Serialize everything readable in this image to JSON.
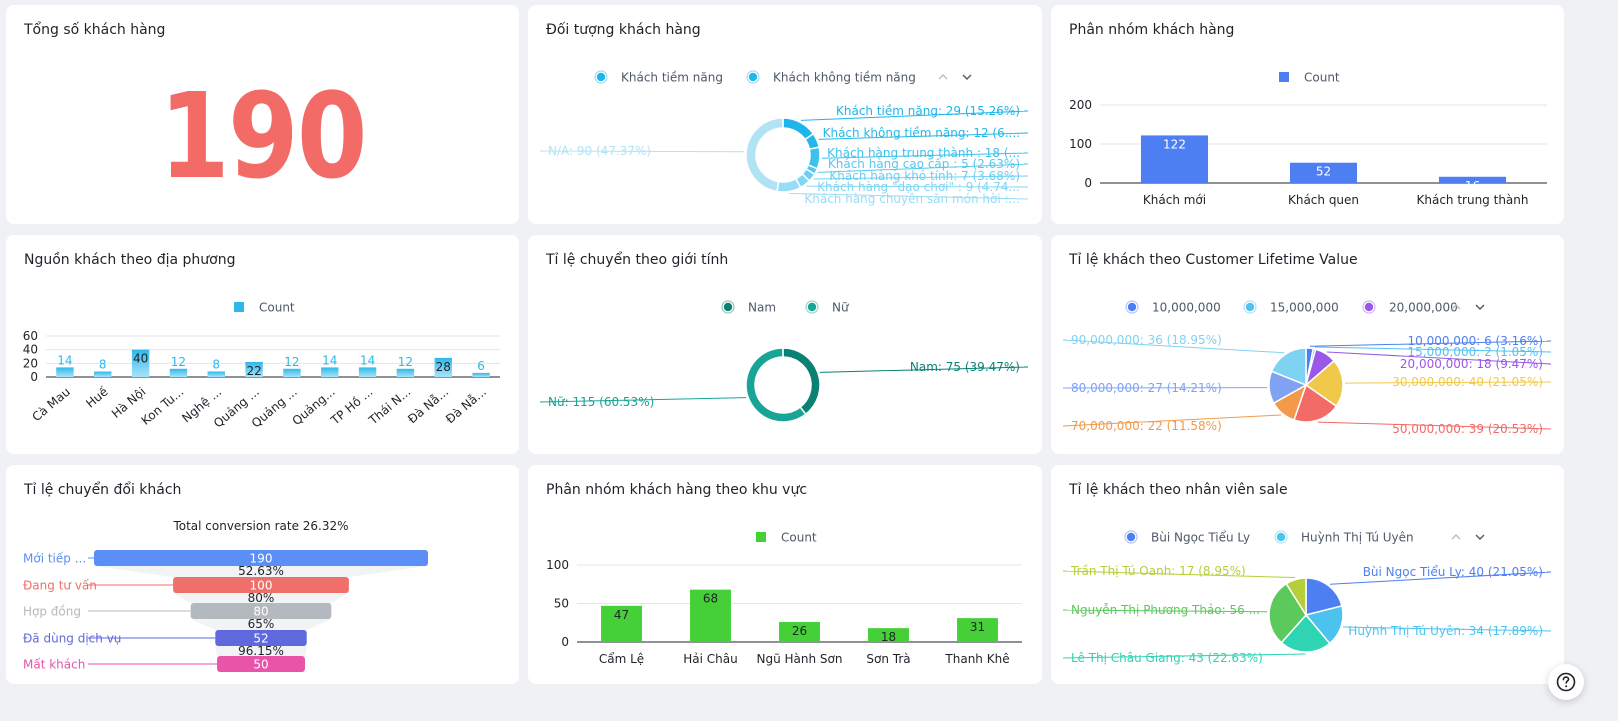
{
  "chart_data": [
    {
      "id": "total",
      "type": "table",
      "title": "Tổng số khách hàng",
      "value": "190"
    },
    {
      "id": "audience",
      "type": "pie",
      "title": "Đối tượng khách hàng",
      "legend": [
        "Khách tiềm năng",
        "Khách không tiềm năng"
      ],
      "legend_position": "top",
      "slices": [
        {
          "label": "Khách tiềm năng: 29 (15.26%)",
          "value": 29,
          "color": "#1db5ea"
        },
        {
          "label": "Khách không tiềm năng: 12 (6....",
          "value": 12,
          "color": "#24b8ea"
        },
        {
          "label": "Khách hàng trung thành : 18 (...",
          "value": 18,
          "color": "#3dc1ed"
        },
        {
          "label": "Khách hàng cao cấp : 5 (2.63%)",
          "value": 5,
          "color": "#55c8ef"
        },
        {
          "label": "Khách hàng khó tính: 7 (3.68%)",
          "value": 7,
          "color": "#6ccff1"
        },
        {
          "label": "Khách hàng \"dạo chơi\" : 9 (4.74...",
          "value": 9,
          "color": "#82d6f3"
        },
        {
          "label": "Khách hàng chuyên săn món hời :...",
          "value": 20,
          "color": "#98dcf5"
        },
        {
          "label": "N/A: 90 (47.37%)",
          "value": 90,
          "color": "#b2e3f5"
        }
      ]
    },
    {
      "id": "segments",
      "type": "bar",
      "title": "Phân nhóm khách hàng",
      "legend": [
        "Count"
      ],
      "legend_position": "top",
      "color": "#4e7ff2",
      "categories": [
        "Khách mới",
        "Khách quen",
        "Khách trung thành"
      ],
      "values": [
        122,
        52,
        16
      ],
      "yticks": [
        0,
        100,
        200
      ],
      "ylim": [
        0,
        200
      ]
    },
    {
      "id": "region_source",
      "type": "bar",
      "title": "Nguồn khách theo địa phương",
      "legend": [
        "Count"
      ],
      "legend_position": "top",
      "color": "#2cb9ea",
      "categories": [
        "Cà Mau",
        "Huế",
        "Hà Nội",
        "Kon Tu...",
        "Nghệ ...",
        "Quảng ...",
        "Quảng ...",
        "Quảng...",
        "TP Hồ ...",
        "Thái N...",
        "Đà Nẵ...",
        "Đà Nẵ..."
      ],
      "values": [
        14,
        8,
        40,
        12,
        8,
        22,
        12,
        14,
        14,
        12,
        28,
        6
      ],
      "yticks": [
        0,
        20,
        40,
        60
      ],
      "ylim": [
        0,
        60
      ]
    },
    {
      "id": "gender",
      "type": "pie",
      "title": "Tỉ lệ chuyển theo giới tính",
      "legend": [
        "Nam",
        "Nữ"
      ],
      "legend_position": "top",
      "slices": [
        {
          "label": "Nam: 75 (39.47%)",
          "value": 75,
          "color": "#0b8174"
        },
        {
          "label": "Nữ: 115 (60.53%)",
          "value": 115,
          "color": "#19a595"
        }
      ]
    },
    {
      "id": "clv",
      "type": "pie",
      "title": "Tỉ lệ khách theo Customer Lifetime Value",
      "legend": [
        "10,000,000",
        "15,000,000",
        "20,000,000"
      ],
      "legend_position": "top",
      "slices": [
        {
          "label": "10,000,000: 6 (3.16%)",
          "value": 6,
          "color": "#4e7ff2"
        },
        {
          "label": "15,000,000: 2 (1.05%)",
          "value": 2,
          "color": "#53c1f0"
        },
        {
          "label": "20,000,000: 18 (9.47%)",
          "value": 18,
          "color": "#9b58e8"
        },
        {
          "label": "30,000,000: 40 (21.05%)",
          "value": 40,
          "color": "#f0c94a"
        },
        {
          "label": "50,000,000: 39 (20.53%)",
          "value": 39,
          "color": "#f26b66"
        },
        {
          "label": "70,000,000: 22 (11.58%)",
          "value": 22,
          "color": "#f29a4a"
        },
        {
          "label": "80,000,000: 27 (14.21%)",
          "value": 27,
          "color": "#7fa3f2"
        },
        {
          "label": "90,000,000: 36 (18.95%)",
          "value": 36,
          "color": "#7fd3f2"
        }
      ]
    },
    {
      "id": "funnel",
      "type": "bar",
      "title": "Tỉ lệ chuyển đổi khách",
      "summary": "Total conversion rate 26.32%",
      "stages": [
        {
          "label": "Mới tiếp ...",
          "value": 190,
          "color": "#5b8ff5"
        },
        {
          "label": "Đang tư vấn",
          "value": 100,
          "color": "#ef6f6a"
        },
        {
          "label": "Hợp đồng",
          "value": 80,
          "color": "#b4b8bf"
        },
        {
          "label": "Đã dùng dịch vụ",
          "value": 52,
          "color": "#6068dd"
        },
        {
          "label": "Mất khách",
          "value": 50,
          "color": "#e855a8"
        }
      ],
      "rates": [
        "52.63%",
        "80%",
        "65%",
        "96.15%"
      ]
    },
    {
      "id": "area_segments",
      "type": "bar",
      "title": "Phân nhóm khách hàng theo khu vực",
      "legend": [
        "Count"
      ],
      "legend_position": "top",
      "color": "#46d037",
      "categories": [
        "Cẩm Lệ",
        "Hải Châu",
        "Ngũ Hành Sơn",
        "Sơn Trà",
        "Thanh Khê"
      ],
      "values": [
        47,
        68,
        26,
        18,
        31
      ],
      "yticks": [
        0,
        50,
        100
      ],
      "ylim": [
        0,
        100
      ]
    },
    {
      "id": "sales_staff",
      "type": "pie",
      "title": "Tỉ lệ khách theo nhân viên sale",
      "legend": [
        "Bùi Ngọc Tiểu Ly",
        "Huỳnh Thị Tú Uyên"
      ],
      "legend_position": "top",
      "slices": [
        {
          "label": "Bùi Ngọc Tiểu Ly: 40 (21.05%)",
          "value": 40,
          "color": "#4e7ff2"
        },
        {
          "label": "Huỳnh Thị Tú Uyên: 34 (17.89%)",
          "value": 34,
          "color": "#4cc3ef"
        },
        {
          "label": "Lê Thị Châu Giang: 43 (22.63%)",
          "value": 43,
          "color": "#2fd4b2"
        },
        {
          "label": "Nguyễn Thị Phương Thảo: 56 ...",
          "value": 56,
          "color": "#5cc95c"
        },
        {
          "label": "Trần Thị Tú Oanh: 17 (8.95%)",
          "value": 17,
          "color": "#b5cf3a"
        }
      ]
    }
  ],
  "icons": {
    "legend_prev": "chevron-up-icon",
    "legend_next": "chevron-down-icon",
    "help": "question-circle-icon"
  }
}
